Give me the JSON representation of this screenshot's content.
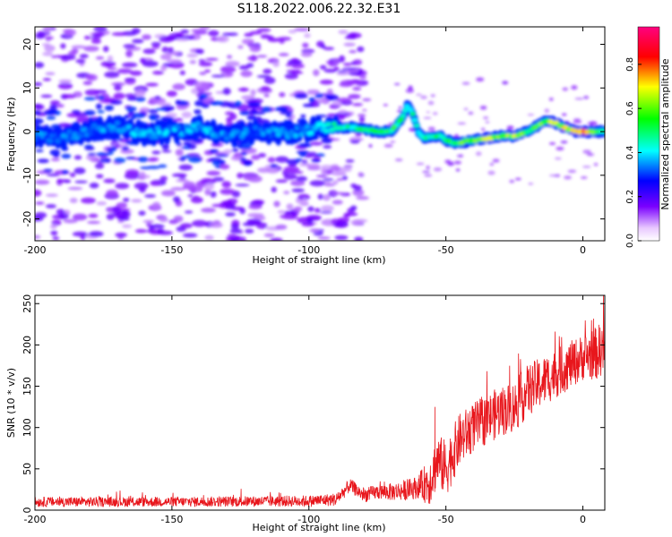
{
  "figure_title": "S118.2022.006.22.32.E31",
  "chart_data": [
    {
      "type": "heatmap",
      "title": "",
      "xlabel": "Height of straight line (km)",
      "ylabel": "Frequency (Hz)",
      "xlim": [
        -200,
        8
      ],
      "ylim": [
        -25,
        24
      ],
      "x_ticks": [
        -200,
        -150,
        -100,
        -50,
        0
      ],
      "y_ticks": [
        -20,
        -10,
        0,
        10,
        20
      ],
      "grid": false,
      "colorbar": {
        "label": "Normalized spectral amplitude",
        "range": [
          0.0,
          0.97
        ],
        "ticks": [
          0.0,
          0.2,
          0.4,
          0.6,
          0.8
        ],
        "colormap": [
          "#ffffff",
          "#7a00ff",
          "#0000ff",
          "#00ffff",
          "#00ff00",
          "#ffff00",
          "#ff0000",
          "#ff0080"
        ]
      },
      "ridge_line": {
        "x": [
          -200,
          -190,
          -180,
          -170,
          -160,
          -150,
          -140,
          -130,
          -120,
          -110,
          -100,
          -95,
          -90,
          -85,
          -80,
          -75,
          -70,
          -66,
          -64,
          -62,
          -60,
          -58,
          -55,
          -52,
          -50,
          -47,
          -45,
          -40,
          -35,
          -30,
          -25,
          -20,
          -15,
          -13,
          -10,
          -7,
          -5,
          -2,
          0,
          3,
          8
        ],
        "y": [
          -1,
          -1.5,
          0.5,
          1,
          -0.5,
          0,
          1,
          -1,
          0,
          -0.5,
          0.5,
          1,
          1,
          1,
          0.5,
          0,
          0,
          3,
          6,
          4,
          0,
          -1.5,
          -1,
          -1,
          -2,
          -2.5,
          -2.5,
          -2,
          -1.5,
          -1,
          -1,
          0,
          2,
          2.5,
          2,
          1,
          0.5,
          0,
          0,
          0,
          0
        ]
      },
      "ridge_amplitude": {
        "x": [
          -200,
          -180,
          -160,
          -140,
          -120,
          -100,
          -90,
          -80,
          -70,
          -60,
          -50,
          -45,
          -40,
          -35,
          -30,
          -25,
          -20,
          -15,
          -10,
          -5,
          0,
          8
        ],
        "values": [
          0.3,
          0.3,
          0.35,
          0.35,
          0.3,
          0.35,
          0.45,
          0.5,
          0.55,
          0.45,
          0.5,
          0.6,
          0.6,
          0.65,
          0.6,
          0.65,
          0.55,
          0.6,
          0.65,
          0.7,
          0.9,
          0.5
        ]
      }
    },
    {
      "type": "line",
      "title": "",
      "xlabel": "Height of straight line (km)",
      "ylabel": "SNR (10 * v/v)",
      "xlim": [
        -200,
        8
      ],
      "ylim": [
        0,
        260
      ],
      "x_ticks": [
        -200,
        -150,
        -100,
        -50,
        0
      ],
      "y_ticks": [
        0,
        50,
        100,
        150,
        200,
        250
      ],
      "grid": false,
      "series_color": "#e8161c",
      "trend": {
        "x": [
          -200,
          -150,
          -100,
          -90,
          -85,
          -80,
          -75,
          -70,
          -65,
          -60,
          -56,
          -53,
          -50,
          -45,
          -40,
          -35,
          -30,
          -25,
          -20,
          -15,
          -10,
          -5,
          0,
          5,
          8
        ],
        "y": [
          10,
          10,
          11,
          13,
          30,
          18,
          22,
          22,
          24,
          28,
          35,
          60,
          50,
          85,
          100,
          110,
          120,
          125,
          145,
          155,
          165,
          175,
          185,
          190,
          200
        ]
      },
      "noise_amplitude": {
        "x": [
          -200,
          -150,
          -100,
          -90,
          -75,
          -60,
          -56,
          -50,
          -40,
          -20,
          0,
          8
        ],
        "values": [
          6,
          6,
          7,
          8,
          9,
          14,
          30,
          35,
          30,
          32,
          28,
          35
        ]
      },
      "peak_events": [
        {
          "x": -54,
          "y": 125
        },
        {
          "x": 7.5,
          "y": 260
        }
      ]
    }
  ]
}
